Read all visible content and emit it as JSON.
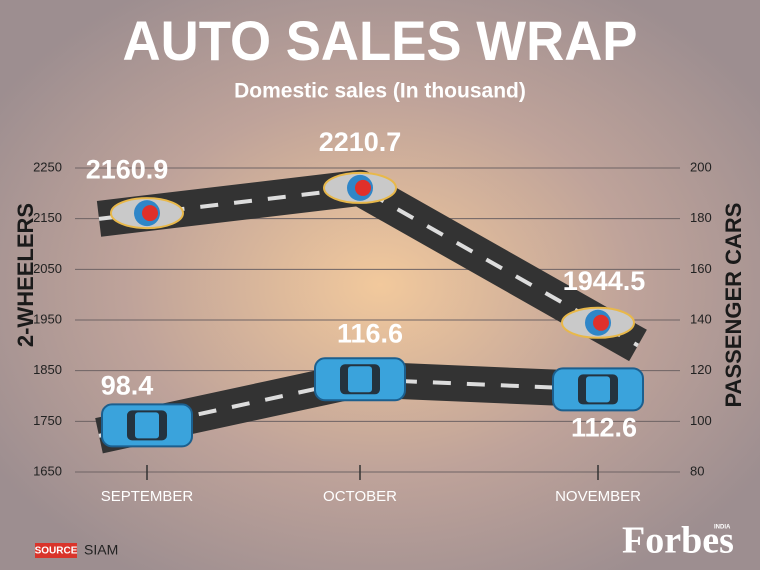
{
  "chart_data": {
    "type": "line",
    "title": "AUTO SALES WRAP",
    "subtitle": "Domestic sales (In thousand)",
    "ylabel": "2-WHEELERS",
    "y2label": "PASSENGER CARS",
    "categories": [
      "SEPTEMBER",
      "OCTOBER",
      "NOVEMBER"
    ],
    "series": [
      {
        "name": "2-WHEELERS",
        "color": "#333333",
        "marker_color": "#2f86c8",
        "values": [
          2160.9,
          2210.7,
          1944.5
        ]
      },
      {
        "name": "PASSENGER CARS",
        "color": "#333333",
        "marker_color": "#3aa3dc",
        "axis": "y2",
        "values": [
          98.4,
          116.6,
          112.6
        ]
      }
    ],
    "ylim": [
      1650,
      2250
    ],
    "yticks": [
      1650,
      1750,
      1850,
      1950,
      2050,
      2150,
      2250
    ],
    "y2lim": [
      80,
      200
    ],
    "y2ticks": [
      80,
      100,
      120,
      140,
      160,
      180,
      200
    ],
    "grid": true,
    "source_label": "SOURCE",
    "source": "SIAM",
    "logo": "Forbes",
    "logo_sub": "INDIA"
  }
}
